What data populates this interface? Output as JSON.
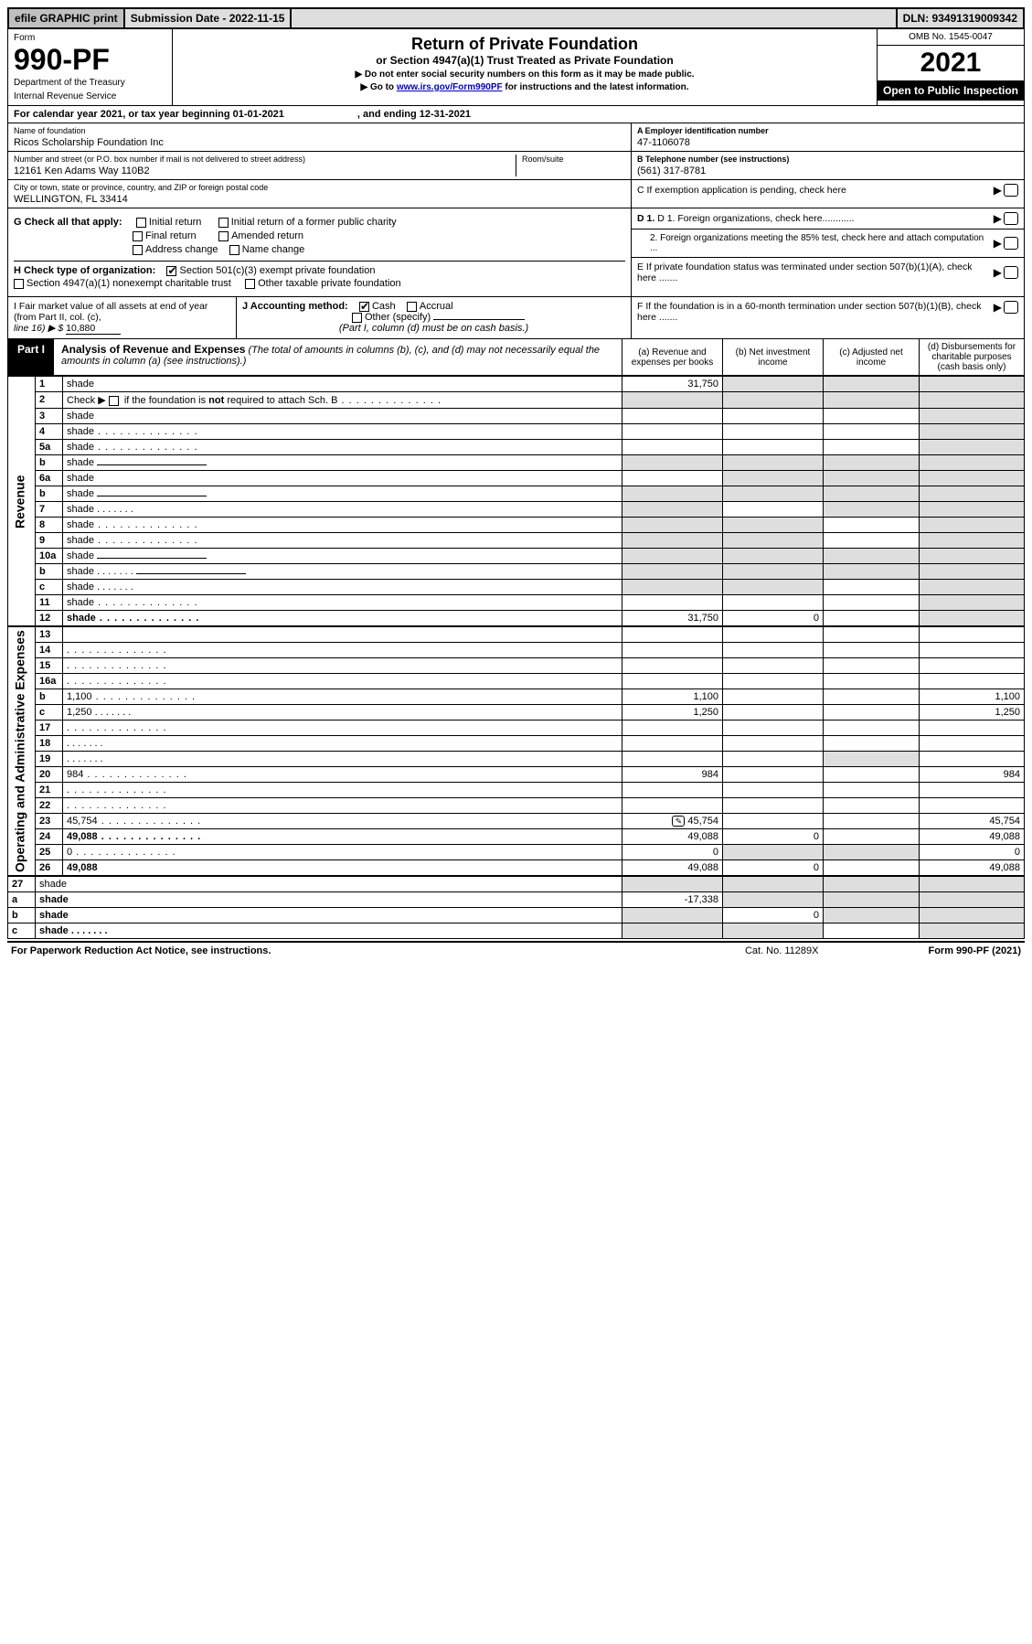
{
  "topbar": {
    "efile": "efile GRAPHIC print",
    "sub_label": "Submission Date - 2022-11-15",
    "dln": "DLN: 93491319009342"
  },
  "header": {
    "form_word": "Form",
    "form_num": "990-PF",
    "dept": "Department of the Treasury",
    "irs": "Internal Revenue Service",
    "title": "Return of Private Foundation",
    "subtitle": "or Section 4947(a)(1) Trust Treated as Private Foundation",
    "note1": "▶ Do not enter social security numbers on this form as it may be made public.",
    "note2_a": "▶ Go to ",
    "note2_link": "www.irs.gov/Form990PF",
    "note2_b": " for instructions and the latest information.",
    "omb": "OMB No. 1545-0047",
    "year": "2021",
    "inspect": "Open to Public Inspection"
  },
  "calyear": {
    "a": "For calendar year 2021, or tax year beginning 01-01-2021",
    "b": ", and ending 12-31-2021"
  },
  "blockA": {
    "name_lbl": "Name of foundation",
    "name_val": "Ricos Scholarship Foundation Inc",
    "addr_lbl": "Number and street (or P.O. box number if mail is not delivered to street address)",
    "addr_val": "12161 Ken Adams Way 110B2",
    "room_lbl": "Room/suite",
    "city_lbl": "City or town, state or province, country, and ZIP or foreign postal code",
    "city_val": "WELLINGTON, FL  33414",
    "a_ein_lbl": "A Employer identification number",
    "a_ein_val": "47-1106078",
    "b_tel_lbl": "B Telephone number (see instructions)",
    "b_tel_val": "(561) 317-8781",
    "c_lbl": "C If exemption application is pending, check here"
  },
  "blockGH": {
    "g_lbl": "G Check all that apply:",
    "g1": "Initial return",
    "g2": "Initial return of a former public charity",
    "g3": "Final return",
    "g4": "Amended return",
    "g5": "Address change",
    "g6": "Name change",
    "h_lbl": "H Check type of organization:",
    "h1": "Section 501(c)(3) exempt private foundation",
    "h2": "Section 4947(a)(1) nonexempt charitable trust",
    "h3": "Other taxable private foundation",
    "d1": "D 1. Foreign organizations, check here............",
    "d2": "2. Foreign organizations meeting the 85% test, check here and attach computation ...",
    "e": "E  If private foundation status was terminated under section 507(b)(1)(A), check here ......."
  },
  "blockIJ": {
    "i_a": "I Fair market value of all assets at end of year (from Part II, col. (c),",
    "i_b": "line 16) ▶ $",
    "i_val": "10,880",
    "j_lbl": "J Accounting method:",
    "j1": "Cash",
    "j2": "Accrual",
    "j3": "Other (specify)",
    "j_note": "(Part I, column (d) must be on cash basis.)",
    "f": "F  If the foundation is in a 60-month termination under section 507(b)(1)(B), check here ......."
  },
  "part1": {
    "tag": "Part I",
    "title": "Analysis of Revenue and Expenses",
    "note": " (The total of amounts in columns (b), (c), and (d) may not necessarily equal the amounts in column (a) (see instructions).)",
    "col_a": "(a)  Revenue and expenses per books",
    "col_b": "(b)  Net investment income",
    "col_c": "(c)  Adjusted net income",
    "col_d": "(d)  Disbursements for charitable purposes (cash basis only)"
  },
  "side": {
    "rev": "Revenue",
    "exp": "Operating and Administrative Expenses"
  },
  "rows": [
    {
      "n": "1",
      "d": "shade",
      "a": "31,750",
      "b": "shade",
      "c": "shade"
    },
    {
      "n": "2",
      "d": "shade",
      "a": "shade",
      "b": "shade",
      "c": "shade",
      "html": true,
      "dots": true
    },
    {
      "n": "3",
      "d": "shade",
      "a": "",
      "b": "",
      "c": ""
    },
    {
      "n": "4",
      "d": "shade",
      "a": "",
      "b": "",
      "c": "",
      "dots": true
    },
    {
      "n": "5a",
      "d": "shade",
      "a": "",
      "b": "",
      "c": "",
      "dots": true
    },
    {
      "n": "b",
      "d": "shade",
      "a": "shade",
      "b": "shade",
      "c": "shade",
      "inline": true
    },
    {
      "n": "6a",
      "d": "shade",
      "a": "",
      "b": "shade",
      "c": "shade"
    },
    {
      "n": "b",
      "d": "shade",
      "a": "shade",
      "b": "shade",
      "c": "shade",
      "inline": true
    },
    {
      "n": "7",
      "d": "shade",
      "a": "shade",
      "b": "",
      "c": "shade",
      "dots": true,
      "short": true
    },
    {
      "n": "8",
      "d": "shade",
      "a": "shade",
      "b": "shade",
      "c": "",
      "dots": true
    },
    {
      "n": "9",
      "d": "shade",
      "a": "shade",
      "b": "shade",
      "c": "",
      "dots": true
    },
    {
      "n": "10a",
      "d": "shade",
      "a": "shade",
      "b": "shade",
      "c": "shade",
      "inline": true
    },
    {
      "n": "b",
      "d": "shade",
      "a": "shade",
      "b": "shade",
      "c": "shade",
      "inline": true,
      "dots": true,
      "short": true
    },
    {
      "n": "c",
      "d": "shade",
      "a": "shade",
      "b": "shade",
      "c": "",
      "dots": true,
      "short": true
    },
    {
      "n": "11",
      "d": "shade",
      "a": "",
      "b": "",
      "c": "",
      "dots": true
    },
    {
      "n": "12",
      "d": "shade",
      "a": "31,750",
      "b": "0",
      "c": "",
      "bold": true,
      "dots": true
    }
  ],
  "exprows": [
    {
      "n": "13",
      "d": "",
      "a": "",
      "b": "",
      "c": ""
    },
    {
      "n": "14",
      "d": "",
      "a": "",
      "b": "",
      "c": "",
      "dots": true
    },
    {
      "n": "15",
      "d": "",
      "a": "",
      "b": "",
      "c": "",
      "dots": true
    },
    {
      "n": "16a",
      "d": "",
      "a": "",
      "b": "",
      "c": "",
      "dots": true
    },
    {
      "n": "b",
      "d": "1,100",
      "a": "1,100",
      "b": "",
      "c": "",
      "dots": true
    },
    {
      "n": "c",
      "d": "1,250",
      "a": "1,250",
      "b": "",
      "c": "",
      "dots": true,
      "short": true
    },
    {
      "n": "17",
      "d": "",
      "a": "",
      "b": "",
      "c": "",
      "dots": true
    },
    {
      "n": "18",
      "d": "",
      "a": "",
      "b": "",
      "c": "",
      "dots": true,
      "short": true
    },
    {
      "n": "19",
      "d": "",
      "a": "",
      "b": "",
      "c": "shade",
      "dots": true,
      "short": true
    },
    {
      "n": "20",
      "d": "984",
      "a": "984",
      "b": "",
      "c": "",
      "dots": true
    },
    {
      "n": "21",
      "d": "",
      "a": "",
      "b": "",
      "c": "",
      "dots": true
    },
    {
      "n": "22",
      "d": "",
      "a": "",
      "b": "",
      "c": "",
      "dots": true
    },
    {
      "n": "23",
      "d": "45,754",
      "a": "45,754",
      "b": "",
      "c": "",
      "dots": true,
      "icon": true
    },
    {
      "n": "24",
      "d": "49,088",
      "a": "49,088",
      "b": "0",
      "c": "",
      "bold": true,
      "dots": true
    },
    {
      "n": "25",
      "d": "0",
      "a": "0",
      "b": "shade",
      "c": "shade",
      "dots": true
    },
    {
      "n": "26",
      "d": "49,088",
      "a": "49,088",
      "b": "0",
      "c": "",
      "bold": true
    }
  ],
  "tailrows": [
    {
      "n": "27",
      "d": "shade",
      "a": "shade",
      "b": "shade",
      "c": "shade"
    },
    {
      "n": "a",
      "d": "shade",
      "a": "-17,338",
      "b": "shade",
      "c": "shade",
      "bold": true
    },
    {
      "n": "b",
      "d": "shade",
      "a": "shade",
      "b": "0",
      "c": "shade",
      "bold": true
    },
    {
      "n": "c",
      "d": "shade",
      "a": "shade",
      "b": "shade",
      "c": "",
      "bold": true,
      "dots": true,
      "short": true
    }
  ],
  "footer": {
    "left": "For Paperwork Reduction Act Notice, see instructions.",
    "mid": "Cat. No. 11289X",
    "right": "Form 990-PF (2021)"
  }
}
